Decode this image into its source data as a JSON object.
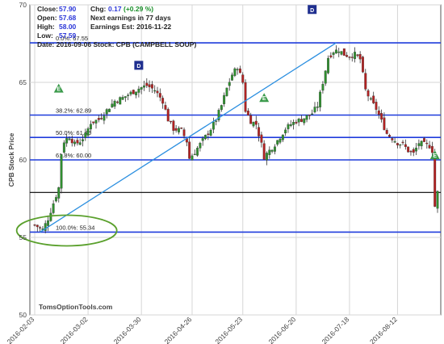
{
  "header": {
    "close_label": "Close:",
    "close_value": "57.90",
    "open_label": "Open:",
    "open_value": "57.68",
    "high_label": "High:",
    "high_value": "58.00",
    "low_label": "Low:",
    "low_value": "57.59",
    "date_line": "Date:   2016-09-06 Stock: CPB (CAMPBELL SOUP)",
    "chg_label": "Chg:",
    "chg_value": "0.17",
    "chg_pct": "(+0.29 %)",
    "earnings_next": "Next earnings in 77 days",
    "earnings_est": "Earnings Est: 2016-11-22"
  },
  "watermark": "TomsOptionTools.com",
  "colors": {
    "up": "#2f8f2f",
    "down": "#b22222",
    "fib_line": "#1f3cdc",
    "trend": "#2b8fe0",
    "close_line": "#000000",
    "marker_dividend": "#1f2f8f",
    "marker_earnings": "#3a9a4a",
    "ellipse": "#5aa02c"
  },
  "chart_data": {
    "type": "candlestick",
    "ylabel": "CPB Stock Price",
    "ylim": [
      50,
      70
    ],
    "yticks": [
      50,
      55,
      60,
      65,
      70
    ],
    "x_ticks": [
      "2016-02-03",
      "2016-03-02",
      "2016-03-30",
      "2016-04-26",
      "2016-05-23",
      "2016-06-20",
      "2016-07-18",
      "2016-08-12"
    ],
    "n_days": 152,
    "x_tick_days": [
      0,
      20,
      40,
      59,
      78,
      98,
      118,
      136
    ],
    "grid": true,
    "fib_levels": [
      {
        "label": "0.0%: 67.55",
        "value": 67.55
      },
      {
        "label": "38.2%: 62.89",
        "value": 62.89
      },
      {
        "label": "50.0%: 61.45",
        "value": 61.45
      },
      {
        "label": "61.8%: 60.00",
        "value": 60.0
      },
      {
        "label": "100.0%: 55.34",
        "value": 55.34
      }
    ],
    "close_line": 57.9,
    "trendline": [
      {
        "day": 2,
        "value": 55.34
      },
      {
        "day": 113,
        "value": 67.55
      }
    ],
    "markers": [
      {
        "letter": "E",
        "kind": "earnings",
        "day": 9,
        "value": 64.6
      },
      {
        "letter": "D",
        "kind": "dividend",
        "day": 39,
        "value": 66.1
      },
      {
        "letter": "E",
        "kind": "earnings",
        "day": 86,
        "value": 64.0
      },
      {
        "letter": "D",
        "kind": "dividend",
        "day": 104,
        "value": 69.7
      },
      {
        "letter": "E",
        "kind": "earnings",
        "day": 150,
        "value": 60.3
      }
    ],
    "close_path": [
      [
        0,
        55.8
      ],
      [
        3,
        55.5
      ],
      [
        5,
        56.2
      ],
      [
        7,
        57.2
      ],
      [
        9,
        58.2
      ],
      [
        10,
        60.4
      ],
      [
        11,
        61.2
      ],
      [
        13,
        61.5
      ],
      [
        15,
        61.0
      ],
      [
        17,
        61.2
      ],
      [
        19,
        61.6
      ],
      [
        21,
        62.4
      ],
      [
        24,
        62.6
      ],
      [
        27,
        63.2
      ],
      [
        30,
        63.8
      ],
      [
        33,
        64.0
      ],
      [
        36,
        64.3
      ],
      [
        39,
        64.6
      ],
      [
        42,
        64.8
      ],
      [
        45,
        64.5
      ],
      [
        48,
        63.8
      ],
      [
        50,
        62.6
      ],
      [
        52,
        62.0
      ],
      [
        55,
        61.9
      ],
      [
        57,
        61.2
      ],
      [
        58,
        60.1
      ],
      [
        60,
        60.5
      ],
      [
        62,
        61.0
      ],
      [
        64,
        61.5
      ],
      [
        66,
        62.0
      ],
      [
        68,
        62.6
      ],
      [
        70,
        63.5
      ],
      [
        72,
        64.6
      ],
      [
        74,
        65.5
      ],
      [
        76,
        66.0
      ],
      [
        78,
        65.0
      ],
      [
        79,
        63.2
      ],
      [
        81,
        62.5
      ],
      [
        83,
        62.3
      ],
      [
        85,
        61.0
      ],
      [
        86,
        60.2
      ],
      [
        88,
        60.6
      ],
      [
        90,
        61.0
      ],
      [
        92,
        61.5
      ],
      [
        94,
        62.0
      ],
      [
        96,
        62.3
      ],
      [
        98,
        62.5
      ],
      [
        100,
        62.6
      ],
      [
        102,
        62.8
      ],
      [
        104,
        63.0
      ],
      [
        106,
        63.5
      ],
      [
        108,
        65.0
      ],
      [
        110,
        66.6
      ],
      [
        112,
        67.0
      ],
      [
        114,
        67.1
      ],
      [
        116,
        66.8
      ],
      [
        118,
        66.7
      ],
      [
        120,
        66.8
      ],
      [
        122,
        66.5
      ],
      [
        124,
        64.5
      ],
      [
        126,
        63.8
      ],
      [
        128,
        63.3
      ],
      [
        130,
        62.5
      ],
      [
        132,
        61.7
      ],
      [
        134,
        61.4
      ],
      [
        136,
        61.1
      ],
      [
        138,
        61.0
      ],
      [
        140,
        60.6
      ],
      [
        142,
        60.4
      ],
      [
        144,
        61.1
      ],
      [
        146,
        61.0
      ],
      [
        148,
        60.9
      ],
      [
        149,
        60.6
      ],
      [
        150,
        57.0
      ],
      [
        151,
        57.9
      ]
    ]
  }
}
